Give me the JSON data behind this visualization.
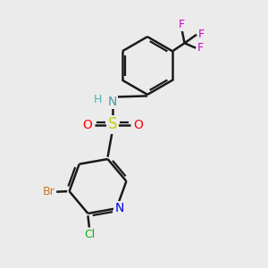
{
  "bg_color": "#ebebeb",
  "bond_color": "#1a1a1a",
  "bond_width": 1.8,
  "atom_colors": {
    "N_nh": "#4a9a9a",
    "N_ring": "#0000ee",
    "S": "#cccc00",
    "O": "#ff0000",
    "Br": "#cc7722",
    "Cl": "#00bb00",
    "F": "#cc00cc",
    "H": "#5aafaf"
  }
}
